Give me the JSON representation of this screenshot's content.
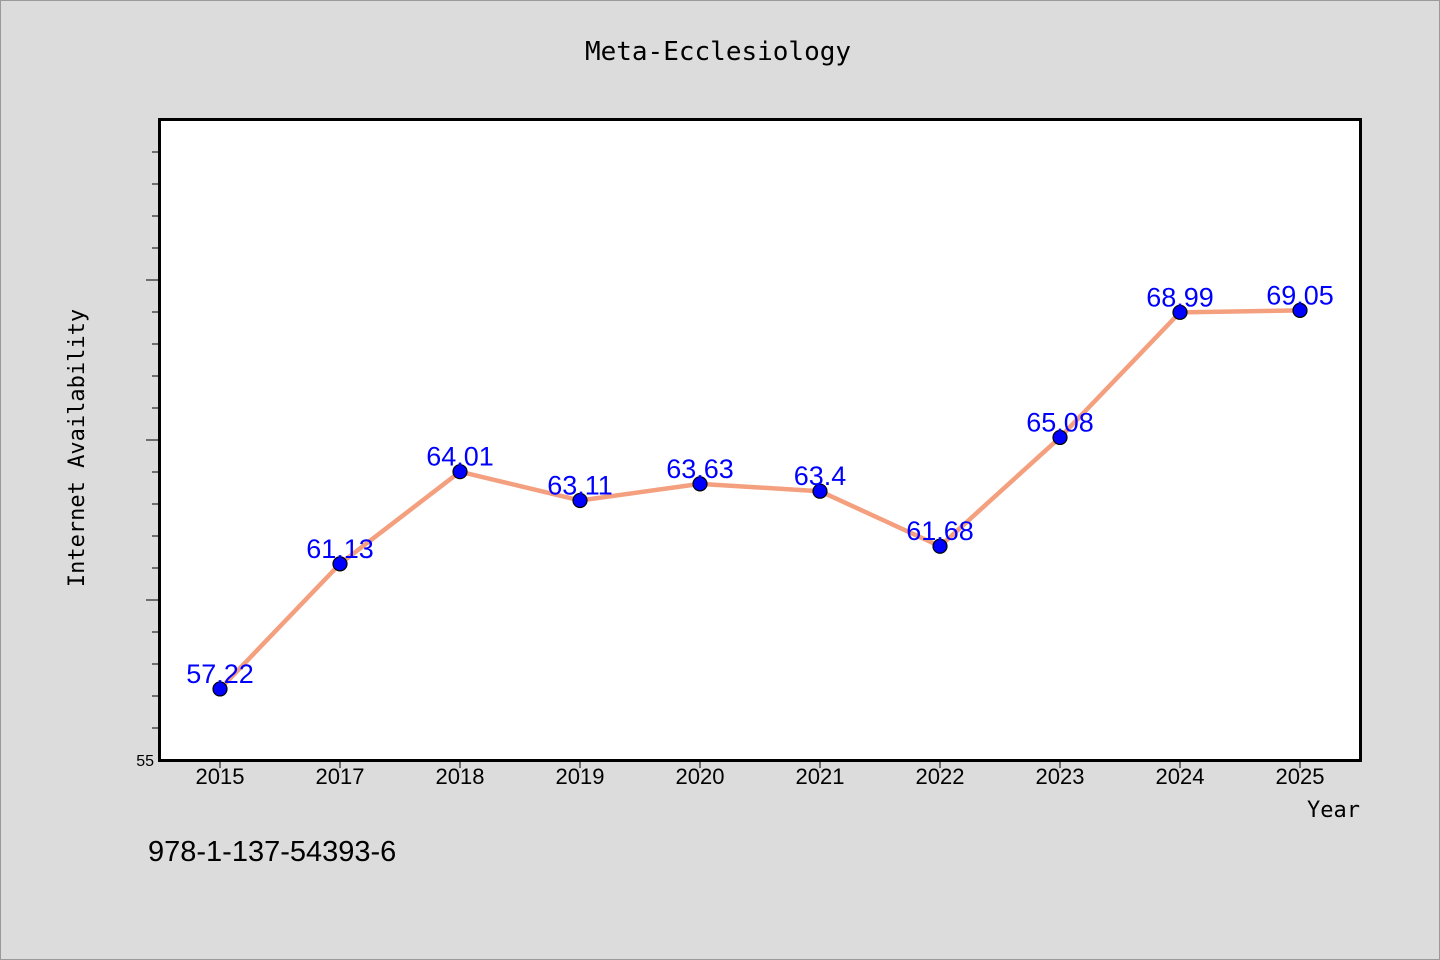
{
  "colors": {
    "background": "#dcdcdc",
    "plot_background": "#ffffff",
    "line": "#f4a07f",
    "marker": "#0000ff",
    "data_label": "#0000ff"
  },
  "footnote": "978-1-137-54393-6",
  "chart_data": {
    "type": "line",
    "title": "Meta-Ecclesiology",
    "xlabel": "Year",
    "ylabel": "Internet Availability",
    "categories": [
      "2015",
      "2017",
      "2018",
      "2019",
      "2020",
      "2021",
      "2022",
      "2023",
      "2024",
      "2025"
    ],
    "series": [
      {
        "values": [
          57.22,
          61.13,
          64.01,
          63.11,
          63.63,
          63.4,
          61.68,
          65.08,
          68.99,
          69.05
        ]
      }
    ],
    "data_labels": [
      "57.22",
      "61.13",
      "64.01",
      "63.11",
      "63.63",
      "63.4",
      "61.68",
      "65.08",
      "68.99",
      "69.05"
    ],
    "ytick_labels": [
      "55"
    ],
    "ylim": [
      55,
      75
    ],
    "y_minor_tick_step": 1,
    "y_major_tick_step": 5,
    "grid": false,
    "legend": "none"
  }
}
